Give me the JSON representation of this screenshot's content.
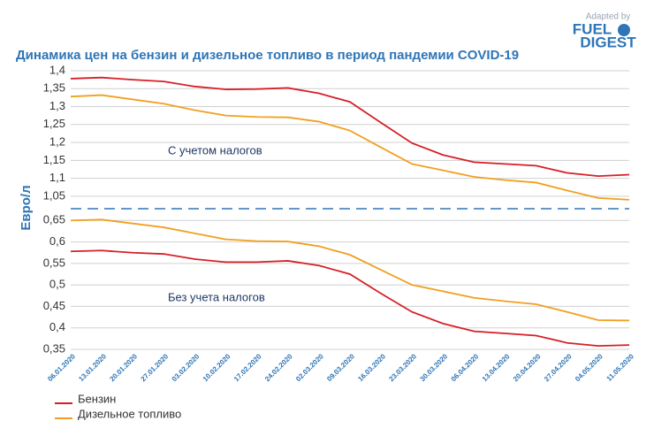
{
  "chart_data": {
    "type": "line",
    "title": "Динамика цен на бензин и дизельное топливо в период пандемии COVID-19",
    "y_label": "Евро/л",
    "logo": {
      "line1": "Adapted by",
      "line2": "FUEL",
      "line3": "DIGEST"
    },
    "categories": [
      "06.01.2020",
      "13.01.2020",
      "20.01.2020",
      "27.01.2020",
      "03.02.2020",
      "10.02.2020",
      "17.02.2020",
      "24.02.2020",
      "02.03.2020",
      "09.03.2020",
      "16.03.2020",
      "23.03.2020",
      "30.03.2020",
      "06.04.2020",
      "13.04.2020",
      "20.04.2020",
      "27.04.2020",
      "04.05.2020",
      "11.05.2020"
    ],
    "series": [
      {
        "name": "Бензин",
        "color": "#d62027"
      },
      {
        "name": "Дизельное топливо",
        "color": "#f0a020"
      }
    ],
    "grid": true,
    "panels": [
      {
        "annotation": "С учетом налогов",
        "ylim": [
          1.02,
          1.4
        ],
        "yticks": [
          {
            "value": 1.05,
            "label": "1,05"
          },
          {
            "value": 1.1,
            "label": "1,1"
          },
          {
            "value": 1.15,
            "label": "1,15"
          },
          {
            "value": 1.2,
            "label": "1,2"
          },
          {
            "value": 1.25,
            "label": "1,25"
          },
          {
            "value": 1.3,
            "label": "1,3"
          },
          {
            "value": 1.35,
            "label": "1,35"
          },
          {
            "value": 1.4,
            "label": "1,4"
          }
        ],
        "series": [
          {
            "values": [
              1.378,
              1.381,
              1.375,
              1.37,
              1.356,
              1.348,
              1.349,
              1.352,
              1.337,
              1.313,
              1.255,
              1.198,
              1.165,
              1.145,
              1.14,
              1.135,
              1.115,
              1.106,
              1.11
            ]
          },
          {
            "values": [
              1.328,
              1.332,
              1.32,
              1.308,
              1.29,
              1.275,
              1.271,
              1.27,
              1.258,
              1.233,
              1.186,
              1.14,
              1.122,
              1.104,
              1.095,
              1.088,
              1.066,
              1.045,
              1.04
            ]
          }
        ]
      },
      {
        "annotation": "Без учета налогов",
        "ylim": [
          0.35,
          0.665
        ],
        "yticks": [
          {
            "value": 0.35,
            "label": "0,35"
          },
          {
            "value": 0.4,
            "label": "0,4"
          },
          {
            "value": 0.45,
            "label": "0,45"
          },
          {
            "value": 0.5,
            "label": "0,5"
          },
          {
            "value": 0.55,
            "label": "0,55"
          },
          {
            "value": 0.6,
            "label": "0,6"
          },
          {
            "value": 0.65,
            "label": "0,65"
          }
        ],
        "series": [
          {
            "values": [
              0.578,
              0.58,
              0.575,
              0.572,
              0.56,
              0.553,
              0.553,
              0.556,
              0.545,
              0.525,
              0.48,
              0.437,
              0.41,
              0.392,
              0.387,
              0.382,
              0.365,
              0.358,
              0.36
            ]
          },
          {
            "values": [
              0.65,
              0.652,
              0.643,
              0.634,
              0.62,
              0.606,
              0.602,
              0.601,
              0.59,
              0.57,
              0.535,
              0.5,
              0.485,
              0.47,
              0.462,
              0.455,
              0.437,
              0.418,
              0.417
            ]
          }
        ]
      }
    ]
  }
}
